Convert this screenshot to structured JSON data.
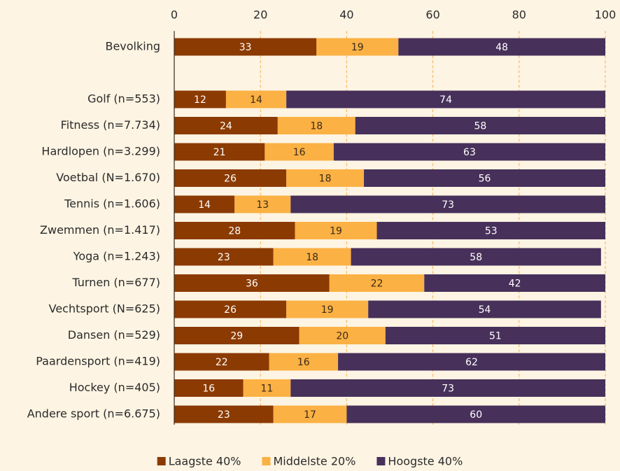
{
  "chart_data": {
    "type": "stacked-barh",
    "categories": [
      "Bevolking",
      null,
      "Golf (n=553)",
      "Fitness (n=7.734)",
      "Hardlopen (n=3.299)",
      "Voetbal (N=1.670)",
      "Tennis (n=1.606)",
      "Zwemmen (n=1.417)",
      "Yoga (n=1.243)",
      "Turnen (n=677)",
      "Vechtsport (N=625)",
      "Dansen (n=529)",
      "Paardensport (n=419)",
      "Hockey (n=405)",
      "Andere sport (n=6.675)"
    ],
    "series": [
      {
        "name": "Laagste 40%",
        "color": "#8b3a02",
        "values": [
          33,
          null,
          12,
          24,
          21,
          26,
          14,
          28,
          23,
          36,
          26,
          29,
          22,
          16,
          23
        ]
      },
      {
        "name": "Middelste 20%",
        "color": "#fbb143",
        "values": [
          19,
          null,
          14,
          18,
          16,
          18,
          13,
          19,
          18,
          22,
          19,
          20,
          16,
          11,
          17
        ]
      },
      {
        "name": "Hoogste 40%",
        "color": "#47305a",
        "values": [
          48,
          null,
          74,
          58,
          63,
          56,
          73,
          53,
          58,
          42,
          54,
          51,
          62,
          73,
          60
        ]
      }
    ],
    "xlim": [
      0,
      100
    ],
    "xticks": [
      0,
      20,
      40,
      60,
      80,
      100
    ],
    "grid": true,
    "legend": "bottom"
  }
}
